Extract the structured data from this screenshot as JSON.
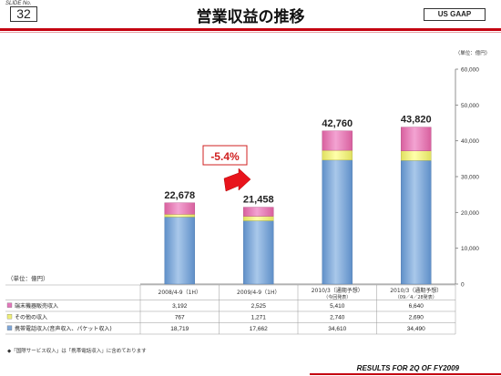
{
  "header": {
    "slide_label": "SLIDE No.",
    "slide_number": "32",
    "title": "営業収益の推移",
    "gaap_badge": "US GAAP"
  },
  "footer": {
    "text": "RESULTS FOR 2Q OF FY2009"
  },
  "notes": {
    "unit_top": "（単位：億円）",
    "unit_left": "（単位：億円）",
    "footnote": "◆「国際サービス収入」は「携帯電話収入」に含めております",
    "growth_callout": "-5.4%"
  },
  "colors": {
    "mobile": "#8fb4dd",
    "other": "#ffff99",
    "equipment": "#ee88cc",
    "callout_border": "#d02020",
    "callout_text": "#d02020",
    "arrow": "#e8141c"
  },
  "chart_data": {
    "type": "bar",
    "stacked": true,
    "categories": [
      "2008/4-9（1H）",
      "2009/4-9（1H）",
      "2010/3（通期予想）",
      "2010/3（通期予想）"
    ],
    "category_sublabels": [
      "",
      "",
      "（今回発表）",
      "（09／4／28発表）"
    ],
    "series": [
      {
        "name": "携帯電話収入(音声収入、パケット収入)",
        "values": [
          18719,
          17662,
          34610,
          34490
        ],
        "display": [
          "18,719",
          "17,662",
          "34,610",
          "34,490"
        ]
      },
      {
        "name": "その他の収入",
        "values": [
          767,
          1271,
          2740,
          2690
        ],
        "display": [
          "767",
          "1,271",
          "2,740",
          "2,690"
        ]
      },
      {
        "name": "端末機器販売収入",
        "values": [
          3192,
          2525,
          5410,
          6640
        ],
        "display": [
          "3,192",
          "2,525",
          "5,410",
          "6,640"
        ]
      }
    ],
    "totals": [
      22678,
      21458,
      42760,
      43820
    ],
    "total_labels": [
      "22,678",
      "21,458",
      "42,760",
      "43,820"
    ],
    "ylim": [
      0,
      60000
    ],
    "yticks": [
      0,
      10000,
      20000,
      30000,
      40000,
      50000,
      60000
    ],
    "ytick_labels": [
      "0",
      "10,000",
      "20,000",
      "30,000",
      "40,000",
      "50,000",
      "60,000"
    ],
    "grid": false,
    "legend": "table-left"
  }
}
